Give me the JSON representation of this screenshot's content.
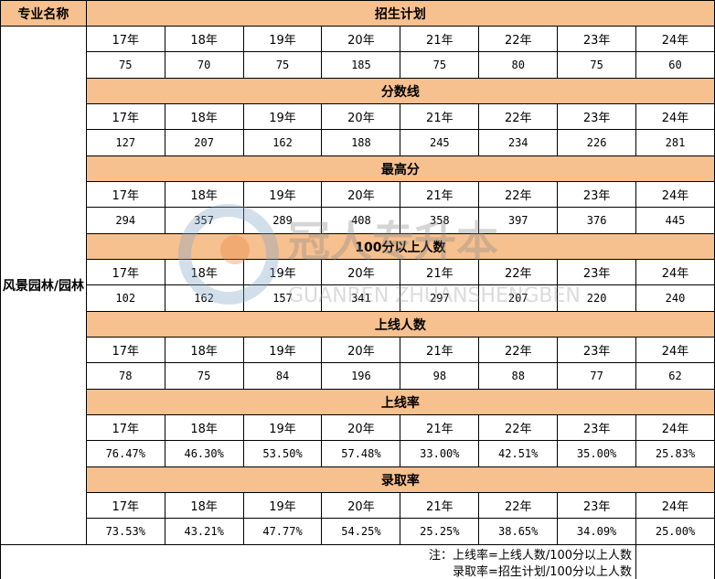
{
  "header": {
    "col_label": "专业名称",
    "major": "风景园林/园林"
  },
  "years": [
    "17年",
    "18年",
    "19年",
    "20年",
    "21年",
    "22年",
    "23年",
    "24年"
  ],
  "sections": [
    {
      "title": "招生计划",
      "values": [
        "75",
        "70",
        "75",
        "185",
        "75",
        "80",
        "75",
        "60"
      ]
    },
    {
      "title": "分数线",
      "values": [
        "127",
        "207",
        "162",
        "188",
        "245",
        "234",
        "226",
        "281"
      ]
    },
    {
      "title": "最高分",
      "values": [
        "294",
        "357",
        "289",
        "408",
        "358",
        "397",
        "376",
        "445"
      ]
    },
    {
      "title": "100分以上人数",
      "values": [
        "102",
        "162",
        "157",
        "341",
        "297",
        "207",
        "220",
        "240"
      ]
    },
    {
      "title": "上线人数",
      "values": [
        "78",
        "75",
        "84",
        "196",
        "98",
        "88",
        "77",
        "62"
      ]
    },
    {
      "title": "上线率",
      "values": [
        "76.47%",
        "46.30%",
        "53.50%",
        "57.48%",
        "33.00%",
        "42.51%",
        "35.00%",
        "25.83%"
      ]
    },
    {
      "title": "录取率",
      "values": [
        "73.53%",
        "43.21%",
        "47.77%",
        "54.25%",
        "25.25%",
        "38.65%",
        "34.09%",
        "25.00%"
      ]
    }
  ],
  "notes": [
    "注：上线率=上线人数/100分以上人数",
    "录取率=招生计划/100分以上人数"
  ],
  "watermark": {
    "cn": "冠人专升本",
    "en": "GUANREN ZHUANSHENGBEN"
  },
  "colors": {
    "section_header": "#f7c08f"
  }
}
